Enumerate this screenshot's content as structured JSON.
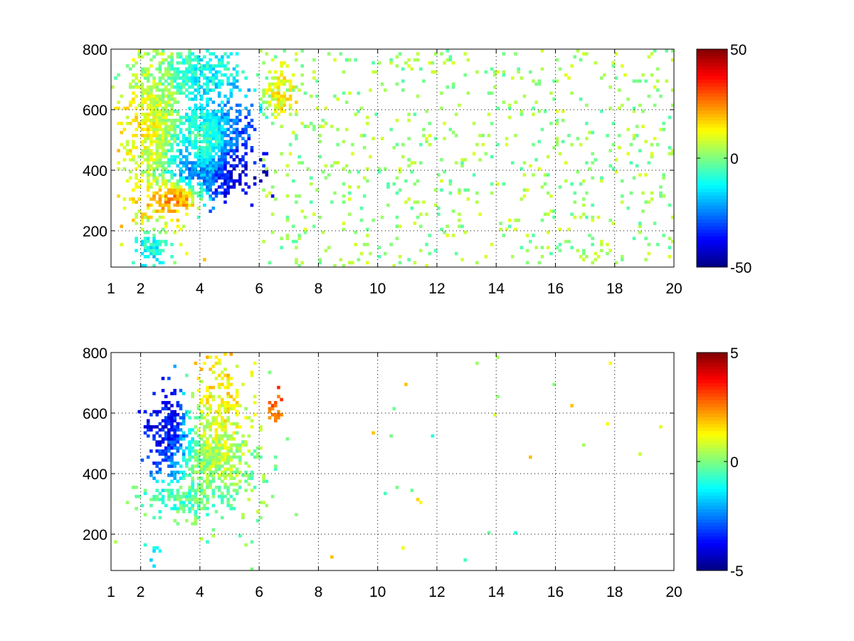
{
  "chart_data": [
    {
      "type": "heatmap",
      "title": "",
      "xlabel": "",
      "ylabel": "",
      "xlim": [
        1,
        20
      ],
      "ylim": [
        80,
        800
      ],
      "x_ticks": [
        "1",
        "2",
        "4",
        "6",
        "8",
        "10",
        "12",
        "14",
        "16",
        "18",
        "20"
      ],
      "y_ticks": [
        "200",
        "400",
        "600",
        "800"
      ],
      "grid": true,
      "colormap": "jet",
      "colorbar": {
        "min": -50,
        "max": 50,
        "ticks": [
          "50",
          "0",
          "-50"
        ]
      },
      "features": [
        {
          "x": 3.3,
          "y": 320,
          "sx": 0.5,
          "sy": 28,
          "value": 40,
          "density": 0.95
        },
        {
          "x": 4.2,
          "y": 400,
          "sx": 0.9,
          "sy": 60,
          "value": -45,
          "density": 0.92
        },
        {
          "x": 4.4,
          "y": 520,
          "sx": 0.8,
          "sy": 90,
          "value": -30,
          "density": 0.9
        },
        {
          "x": 4.2,
          "y": 480,
          "sx": 0.4,
          "sy": 70,
          "value": 28,
          "density": 0.5
        },
        {
          "x": 2.6,
          "y": 520,
          "sx": 0.6,
          "sy": 180,
          "value": 14,
          "density": 0.85
        },
        {
          "x": 3.8,
          "y": 700,
          "sx": 1.0,
          "sy": 70,
          "value": -10,
          "density": 0.8
        },
        {
          "x": 6.7,
          "y": 650,
          "sx": 0.3,
          "sy": 50,
          "value": 12,
          "density": 0.8
        },
        {
          "x": 2.4,
          "y": 140,
          "sx": 0.3,
          "sy": 40,
          "value": -15,
          "density": 0.7
        }
      ],
      "background_noise": {
        "x_from": 6,
        "x_to": 20,
        "density": 0.07,
        "value_range": [
          -5,
          10
        ]
      }
    },
    {
      "type": "heatmap",
      "title": "",
      "xlabel": "",
      "ylabel": "",
      "xlim": [
        1,
        20
      ],
      "ylim": [
        80,
        800
      ],
      "x_ticks": [
        "1",
        "2",
        "4",
        "6",
        "8",
        "10",
        "12",
        "14",
        "16",
        "18",
        "20"
      ],
      "y_ticks": [
        "200",
        "400",
        "600",
        "800"
      ],
      "grid": true,
      "colormap": "jet",
      "colorbar": {
        "min": -5,
        "max": 5,
        "ticks": [
          "5",
          "0",
          "-5"
        ]
      },
      "features": [
        {
          "x": 3.0,
          "y": 530,
          "sx": 0.45,
          "sy": 80,
          "value": -4.5,
          "density": 0.8
        },
        {
          "x": 4.3,
          "y": 450,
          "sx": 0.9,
          "sy": 110,
          "value": 0.0,
          "density": 0.75
        },
        {
          "x": 4.6,
          "y": 600,
          "sx": 0.5,
          "sy": 120,
          "value": 1.5,
          "density": 0.5
        },
        {
          "x": 3.6,
          "y": 320,
          "sx": 0.8,
          "sy": 30,
          "value": -0.5,
          "density": 0.8
        },
        {
          "x": 6.5,
          "y": 610,
          "sx": 0.2,
          "sy": 30,
          "value": 3.0,
          "density": 0.6
        },
        {
          "x": 2.5,
          "y": 140,
          "sx": 0.15,
          "sy": 25,
          "value": -1.5,
          "density": 0.6
        }
      ],
      "background_noise": {
        "x_from": 6,
        "x_to": 20,
        "density": 0.003,
        "value_range": [
          -1,
          2
        ]
      }
    }
  ]
}
